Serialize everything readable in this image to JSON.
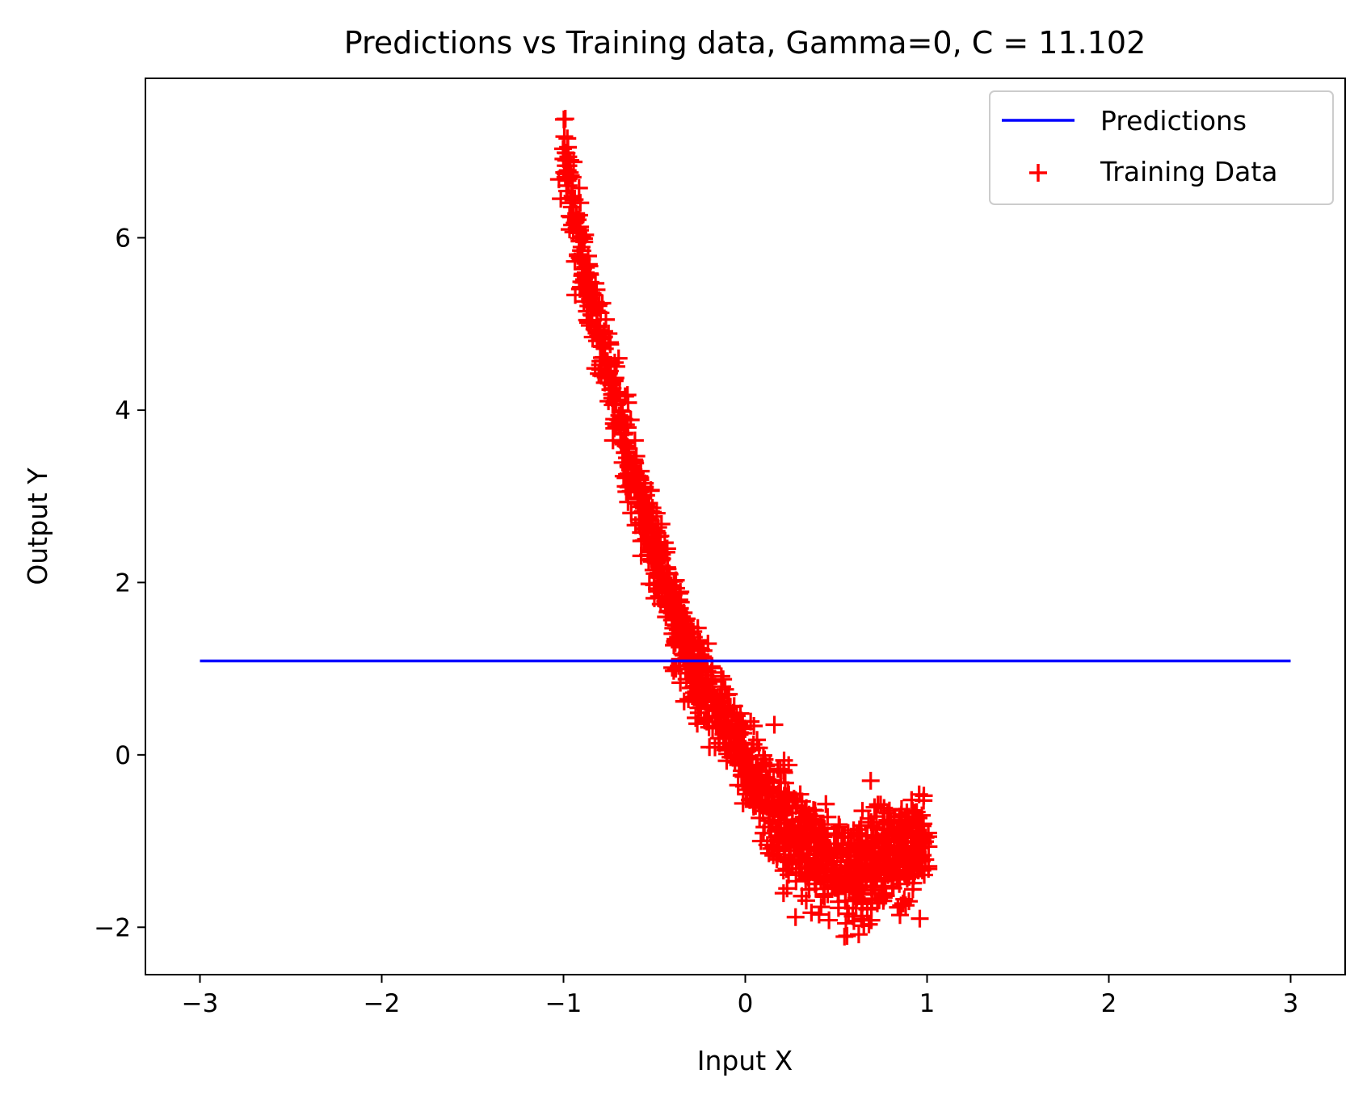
{
  "chart_data": {
    "type": "scatter",
    "title": "Predictions vs Training data, Gamma=0, C = 11.102",
    "xlabel": "Input X",
    "ylabel": "Output Y",
    "xlim": [
      -3.3,
      3.3
    ],
    "ylim": [
      -2.55,
      7.85
    ],
    "xticks": [
      {
        "value": -3,
        "label": "−3"
      },
      {
        "value": -2,
        "label": "−2"
      },
      {
        "value": -1,
        "label": "−1"
      },
      {
        "value": 0,
        "label": "0"
      },
      {
        "value": 1,
        "label": "1"
      },
      {
        "value": 2,
        "label": "2"
      },
      {
        "value": 3,
        "label": "3"
      }
    ],
    "yticks": [
      {
        "value": -2,
        "label": "−2"
      },
      {
        "value": 0,
        "label": "0"
      },
      {
        "value": 2,
        "label": "2"
      },
      {
        "value": 4,
        "label": "4"
      },
      {
        "value": 6,
        "label": "6"
      }
    ],
    "grid": false,
    "legend_position": "top-right",
    "series": [
      {
        "name": "Predictions",
        "kind": "line",
        "color": "#0000ff",
        "x": [
          -3,
          3
        ],
        "y": [
          1.09,
          1.09
        ]
      },
      {
        "name": "Training Data",
        "kind": "scatter",
        "marker": "+",
        "color": "#ff0000",
        "x": [
          -1.0,
          -0.95,
          -0.9,
          -0.85,
          -0.8,
          -0.75,
          -0.7,
          -0.65,
          -0.6,
          -0.55,
          -0.5,
          -0.45,
          -0.4,
          -0.35,
          -0.3,
          -0.25,
          -0.2,
          -0.15,
          -0.1,
          -0.05,
          0.0,
          0.05,
          0.1,
          0.15,
          0.2,
          0.25,
          0.3,
          0.35,
          0.4,
          0.45,
          0.5,
          0.55,
          0.6,
          0.65,
          0.7,
          0.75,
          0.8,
          0.85,
          0.9,
          0.95,
          1.0
        ],
        "y": [
          7.0,
          6.4,
          5.8,
          5.3,
          4.85,
          4.4,
          4.0,
          3.55,
          3.1,
          2.75,
          2.4,
          2.0,
          1.7,
          1.35,
          1.1,
          0.95,
          0.75,
          0.55,
          0.35,
          0.15,
          -0.05,
          -0.25,
          -0.45,
          -0.6,
          -0.75,
          -0.9,
          -1.0,
          -1.1,
          -1.2,
          -1.25,
          -1.3,
          -1.35,
          -1.35,
          -1.35,
          -1.3,
          -1.25,
          -1.2,
          -1.15,
          -1.1,
          -1.05,
          -1.0
        ],
        "spread": 0.25,
        "outliers": [
          {
            "x": 0.69,
            "y": -0.3
          },
          {
            "x": 0.16,
            "y": 0.35
          },
          {
            "x": 0.56,
            "y": -2.1
          },
          {
            "x": 0.96,
            "y": -1.9
          },
          {
            "x": -0.99,
            "y": 7.38
          },
          {
            "x": 0.23,
            "y": -1.55
          }
        ]
      }
    ]
  }
}
